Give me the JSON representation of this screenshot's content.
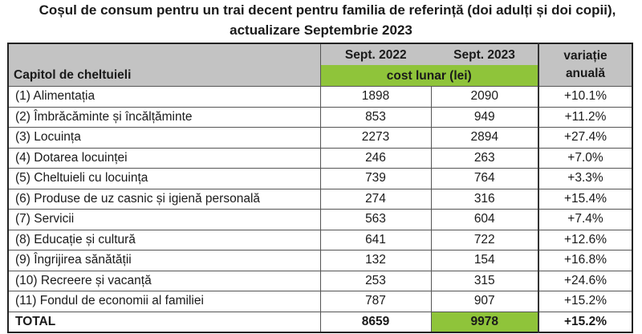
{
  "title": {
    "line1": "Coșul de consum pentru un trai decent pentru familia de referință (doi adulți și doi copii),",
    "line2": "actualizare Septembrie 2023"
  },
  "table": {
    "headers": {
      "chapter": "Capitol de cheltuieli",
      "sept2022": "Sept. 2022",
      "sept2023": "Sept. 2023",
      "cost_band": "cost lunar (lei)",
      "variation_line1": "variație",
      "variation_line2": "anuală"
    },
    "rows": [
      {
        "label": "(1) Alimentația",
        "sept2022": "1898",
        "sept2023": "2090",
        "variation": "+10.1%"
      },
      {
        "label": "(2) Îmbrăcăminte și încălțăminte",
        "sept2022": "853",
        "sept2023": "949",
        "variation": "+11.2%"
      },
      {
        "label": "(3) Locuința",
        "sept2022": "2273",
        "sept2023": "2894",
        "variation": "+27.4%"
      },
      {
        "label": "(4) Dotarea locuinței",
        "sept2022": "246",
        "sept2023": "263",
        "variation": "+7.0%"
      },
      {
        "label": "(5) Cheltuieli cu locuința",
        "sept2022": "739",
        "sept2023": "764",
        "variation": "+3.3%"
      },
      {
        "label": "(6) Produse de uz casnic și igienă personală",
        "sept2022": "274",
        "sept2023": "316",
        "variation": "+15.4%"
      },
      {
        "label": "(7) Servicii",
        "sept2022": "563",
        "sept2023": "604",
        "variation": "+7.4%"
      },
      {
        "label": "(8) Educație și cultură",
        "sept2022": "641",
        "sept2023": "722",
        "variation": "+12.6%"
      },
      {
        "label": "(9) Îngrijirea sănătății",
        "sept2022": "132",
        "sept2023": "154",
        "variation": "+16.8%"
      },
      {
        "label": "(10) Recreere și vacanță",
        "sept2022": "253",
        "sept2023": "315",
        "variation": "+24.6%"
      },
      {
        "label": "(11) Fondul de economii al familiei",
        "sept2022": "787",
        "sept2023": "907",
        "variation": "+15.2%"
      }
    ],
    "total": {
      "label": "TOTAL",
      "sept2022": "8659",
      "sept2023": "9978",
      "variation": "+15.2%"
    }
  },
  "colors": {
    "header_gray": "#c3c3c3",
    "accent_green": "#8fc43a",
    "border": "#222222"
  }
}
